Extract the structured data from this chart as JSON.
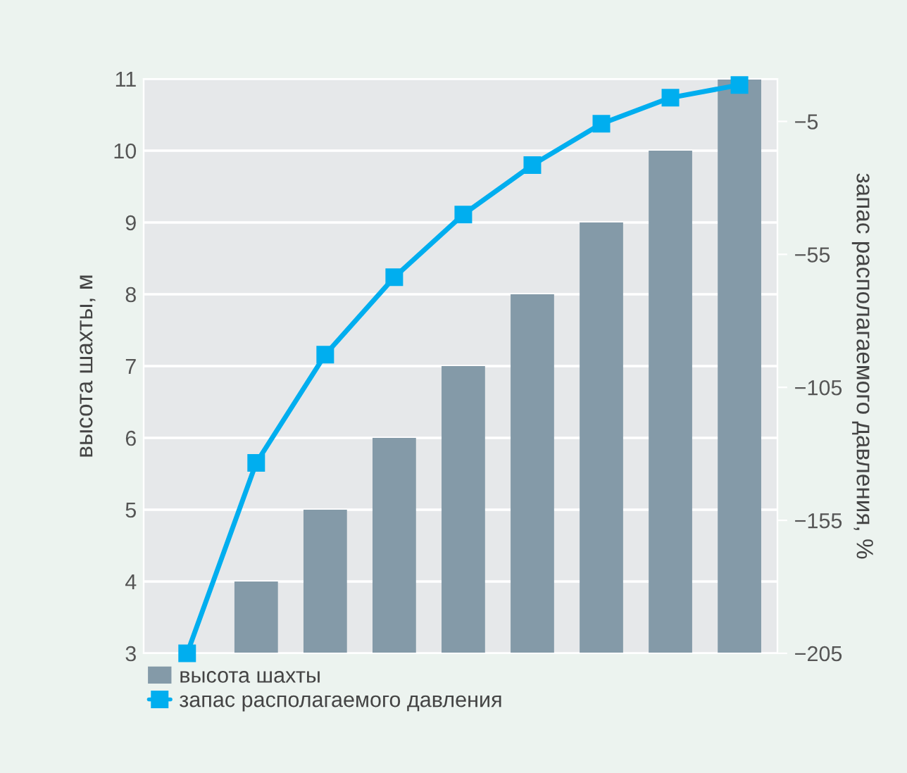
{
  "chart_data": {
    "type": "bar",
    "ylabel": "высота шахты, м",
    "y2label": "запас располагаемого давления, %",
    "categories": [
      null,
      null,
      null,
      null,
      null,
      null,
      null,
      null,
      null
    ],
    "series": [
      {
        "name": "высота шахты",
        "color": "#849aa8",
        "values": [
          null,
          4,
          5,
          6,
          7,
          8,
          9,
          10,
          11
        ]
      },
      {
        "name": "запас располагаемого давления",
        "type": "line",
        "axis": "y2",
        "color": "#00aeef",
        "marker": "square",
        "values": [
          -205,
          -133.4,
          -92.7,
          -63.6,
          -40,
          -21.4,
          -5.9,
          3.9,
          8.7
        ]
      }
    ],
    "ylim": [
      3,
      11
    ],
    "yticks": [
      3,
      4,
      5,
      6,
      7,
      8,
      9,
      10,
      11
    ],
    "y2lim": [
      -205,
      11
    ],
    "y2ticks": [
      {
        "value": -205,
        "label": "−205"
      },
      {
        "value": -155,
        "label": "−155"
      },
      {
        "value": -105,
        "label": "−105"
      },
      {
        "value": -55,
        "label": "−55"
      },
      {
        "value": -5,
        "label": "−5"
      }
    ],
    "grid": "y",
    "legend": "bottom left"
  }
}
